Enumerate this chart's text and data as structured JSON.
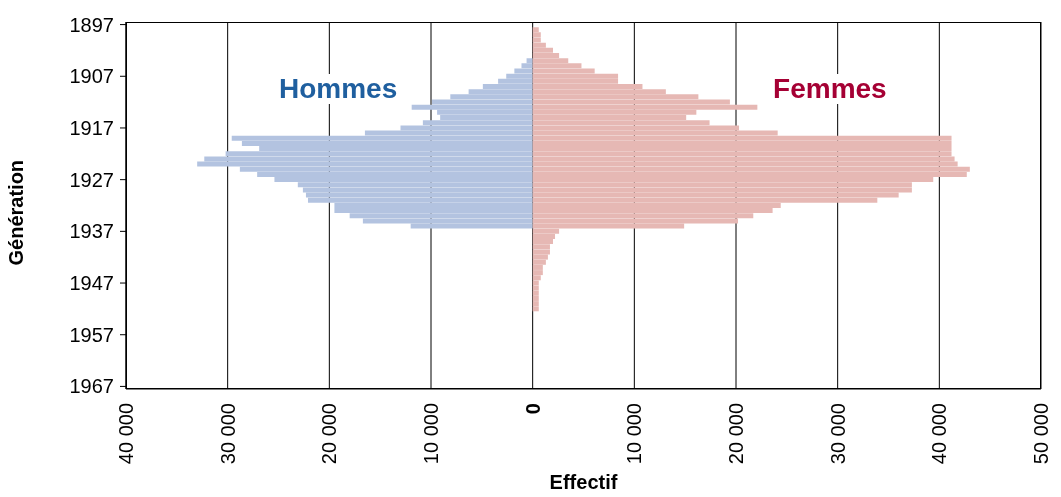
{
  "chart_data": {
    "type": "bar",
    "orientation": "horizontal",
    "xlabel": "Effectif",
    "ylabel": "Génération",
    "categories": [
      "1897",
      null,
      null,
      null,
      null,
      null,
      null,
      null,
      null,
      null,
      "1907",
      null,
      null,
      null,
      null,
      null,
      null,
      null,
      null,
      null,
      "1917",
      null,
      null,
      null,
      null,
      null,
      null,
      null,
      null,
      null,
      "1927",
      null,
      null,
      null,
      null,
      null,
      null,
      null,
      null,
      null,
      "1937",
      null,
      null,
      null,
      null,
      null,
      null,
      null,
      null,
      null,
      "1947",
      null,
      null,
      null,
      null,
      null,
      null,
      null,
      null,
      null,
      "1957",
      null,
      null,
      null,
      null,
      null,
      null,
      null,
      null,
      null,
      "1967"
    ],
    "series": [
      {
        "name": "Hommes",
        "color": "#b3c3e0",
        "values": [
          null,
          null,
          null,
          null,
          null,
          null,
          null,
          -600,
          -1100,
          -1800,
          -2600,
          -3400,
          -4900,
          -6300,
          -8100,
          -9900,
          -11900,
          -9400,
          -9100,
          -10800,
          -13000,
          -16500,
          -29600,
          -28600,
          -26900,
          -30200,
          -32300,
          -33000,
          -28800,
          -27100,
          -25400,
          -23100,
          -22600,
          -22300,
          -22100,
          -19500,
          -19500,
          -18000,
          -16700,
          -12000,
          null,
          null,
          null,
          null,
          null,
          null,
          null,
          null,
          null,
          null,
          null,
          null,
          null,
          null,
          null,
          null,
          null,
          null,
          null,
          null,
          null,
          null,
          null,
          null,
          null,
          null,
          null,
          null,
          null,
          null,
          null
        ]
      },
      {
        "name": "Femmes",
        "color": "#e6b8b4",
        "values": [
          null,
          600,
          800,
          800,
          1300,
          2000,
          2600,
          3500,
          4800,
          6100,
          8400,
          8400,
          10800,
          13100,
          16300,
          19400,
          22100,
          16100,
          15100,
          17400,
          20300,
          24100,
          41200,
          41200,
          41200,
          41200,
          41500,
          41800,
          43000,
          42700,
          39400,
          37300,
          37300,
          36000,
          33900,
          24400,
          23600,
          21700,
          20200,
          14900,
          2600,
          2200,
          2000,
          1700,
          1700,
          1500,
          1300,
          1000,
          1000,
          800,
          600,
          600,
          600,
          600,
          600,
          600,
          null,
          null,
          null,
          null,
          null,
          null,
          null,
          null,
          null,
          null,
          null,
          null,
          null,
          null,
          null
        ]
      }
    ],
    "xlim": [
      -40000,
      50000
    ],
    "xticks": [
      {
        "value": -40000,
        "label": "40 000"
      },
      {
        "value": -30000,
        "label": "30 000"
      },
      {
        "value": -20000,
        "label": "20 000"
      },
      {
        "value": -10000,
        "label": "10 000"
      },
      0,
      {
        "value": 10000,
        "label": "10 000"
      },
      {
        "value": 20000,
        "label": "20 000"
      },
      {
        "value": 30000,
        "label": "30 000"
      },
      {
        "value": 40000,
        "label": "40 000"
      },
      {
        "value": 50000,
        "label": "50 000"
      }
    ],
    "grid": "x",
    "legend": false
  }
}
